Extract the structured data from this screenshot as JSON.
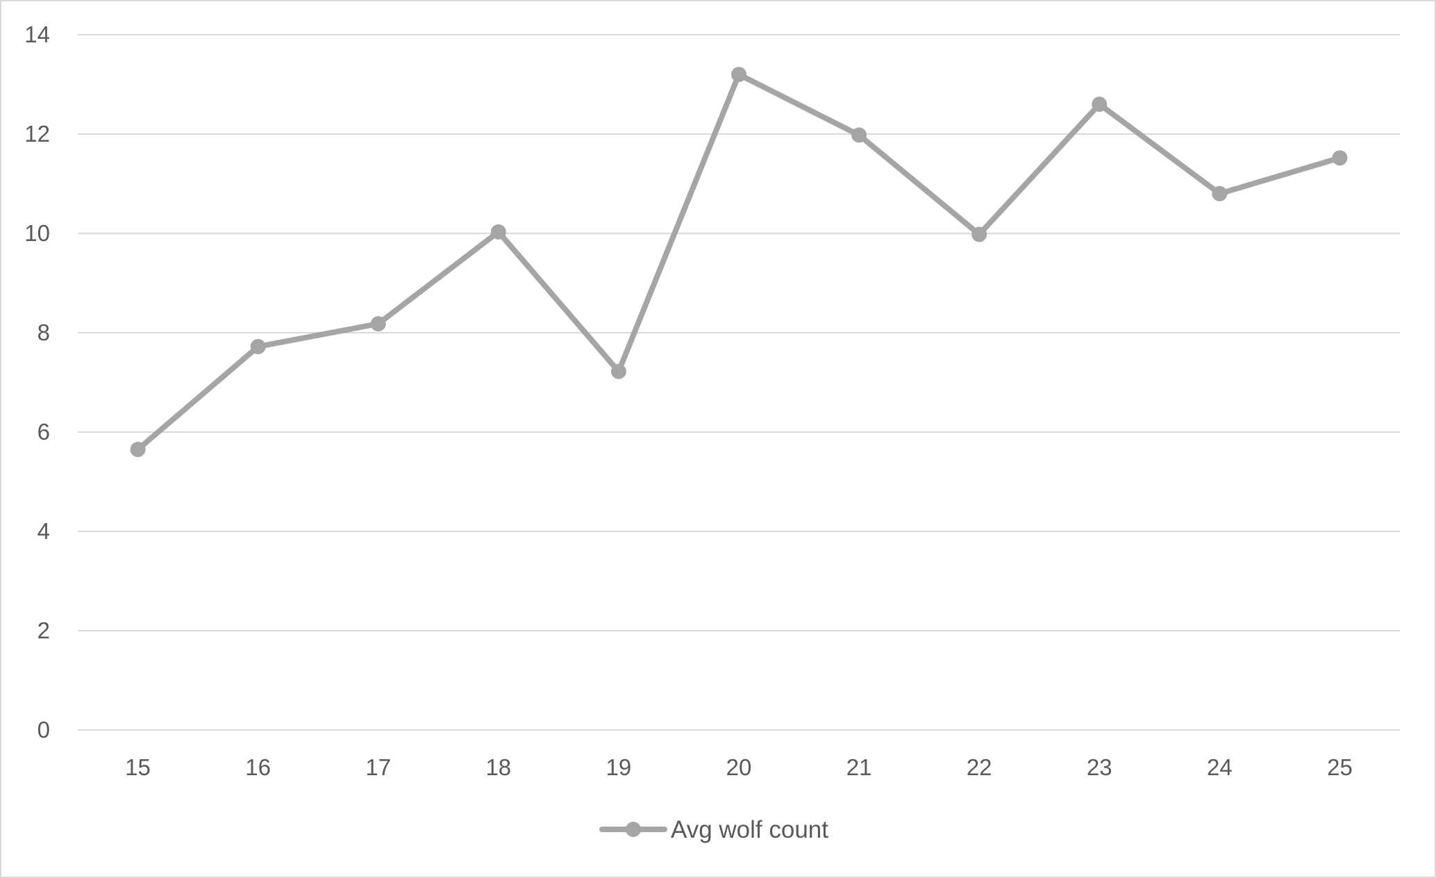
{
  "chart_data": {
    "type": "line",
    "title": "",
    "xlabel": "",
    "ylabel": "",
    "x": [
      15,
      16,
      17,
      18,
      19,
      20,
      21,
      22,
      23,
      24,
      25
    ],
    "x_tick_labels": [
      "15",
      "16",
      "17",
      "18",
      "19",
      "20",
      "21",
      "22",
      "23",
      "24",
      "25"
    ],
    "y_tick_labels": [
      "0",
      "2",
      "4",
      "6",
      "8",
      "10",
      "12",
      "14"
    ],
    "ylim": [
      0,
      14
    ],
    "y_major_unit": 2,
    "grid": "horizontal major gridlines",
    "legend_position": "bottom",
    "series": [
      {
        "name": "Avg wolf count",
        "color": "#a5a5a5",
        "marker": "circle",
        "values": [
          5.65,
          7.72,
          8.18,
          10.03,
          7.22,
          13.2,
          11.98,
          9.98,
          12.6,
          10.8,
          11.52
        ]
      }
    ]
  },
  "colors": {
    "gridline": "#d9d9d9",
    "text": "#595959",
    "frame": "#d9d9d9",
    "background": "#ffffff"
  }
}
